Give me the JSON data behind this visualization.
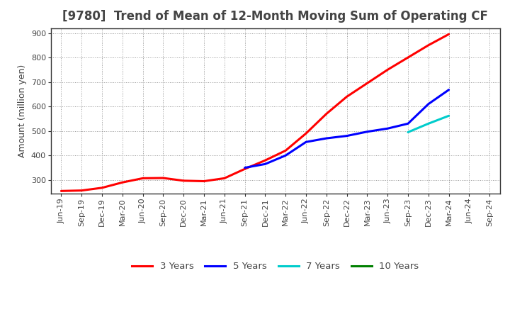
{
  "title": "[9780]  Trend of Mean of 12-Month Moving Sum of Operating CF",
  "ylabel": "Amount (million yen)",
  "ylim": [
    245,
    920
  ],
  "yticks": [
    300,
    400,
    500,
    600,
    700,
    800,
    900
  ],
  "background_color": "#ffffff",
  "grid_color": "#999999",
  "series": {
    "3years": {
      "color": "#ff0000",
      "label": "3 Years",
      "x": [
        "Jun-19",
        "Sep-19",
        "Dec-19",
        "Mar-20",
        "Jun-20",
        "Sep-20",
        "Dec-20",
        "Mar-21",
        "Jun-21",
        "Sep-21",
        "Dec-21",
        "Mar-22",
        "Jun-22",
        "Sep-22",
        "Dec-22",
        "Mar-23",
        "Jun-23",
        "Sep-23",
        "Dec-23",
        "Mar-24"
      ],
      "y": [
        255,
        257,
        268,
        290,
        307,
        308,
        297,
        295,
        307,
        345,
        380,
        420,
        490,
        570,
        640,
        695,
        750,
        800,
        850,
        895
      ]
    },
    "5years": {
      "color": "#0000ff",
      "label": "5 Years",
      "x": [
        "Sep-21",
        "Dec-21",
        "Mar-22",
        "Jun-22",
        "Sep-22",
        "Dec-22",
        "Mar-23",
        "Jun-23",
        "Sep-23",
        "Dec-23",
        "Mar-24"
      ],
      "y": [
        350,
        365,
        400,
        455,
        470,
        480,
        497,
        510,
        530,
        610,
        668
      ]
    },
    "7years": {
      "color": "#00cccc",
      "label": "7 Years",
      "x": [
        "Sep-23",
        "Dec-23",
        "Mar-24"
      ],
      "y": [
        495,
        530,
        562
      ]
    },
    "10years": {
      "color": "#008000",
      "label": "10 Years",
      "x": [],
      "y": []
    }
  },
  "xtick_labels": [
    "Jun-19",
    "Sep-19",
    "Dec-19",
    "Mar-20",
    "Jun-20",
    "Sep-20",
    "Dec-20",
    "Mar-21",
    "Jun-21",
    "Sep-21",
    "Dec-21",
    "Mar-22",
    "Jun-22",
    "Sep-22",
    "Dec-22",
    "Mar-23",
    "Jun-23",
    "Sep-23",
    "Dec-23",
    "Mar-24",
    "Jun-24",
    "Sep-24"
  ],
  "title_fontsize": 12,
  "axis_fontsize": 9,
  "tick_fontsize": 8,
  "title_color": "#444444",
  "tick_color": "#444444",
  "spine_color": "#333333",
  "linewidth": 2.2
}
